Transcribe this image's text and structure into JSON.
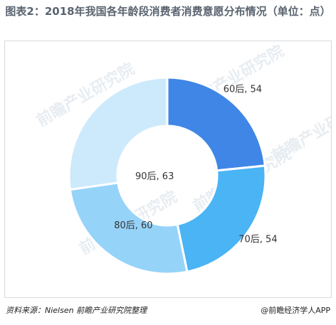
{
  "title": "图表2：2018年我国各年龄段消费者消费意愿分布情况（单位：点）",
  "footer": {
    "source": "资料来源：Nielsen  前瞻产业研究院整理",
    "brand": "@前瞻经济学人APP"
  },
  "watermark": {
    "text": "前瞻产业研究院"
  },
  "chart_data": {
    "type": "pie",
    "donut": true,
    "title": "图表2：2018年我国各年龄段消费者消费意愿分布情况（单位：点）",
    "categories": [
      "60后",
      "70后",
      "80后",
      "90后"
    ],
    "values": [
      54,
      54,
      60,
      63
    ],
    "data_labels": [
      "60后, 54",
      "70后, 54",
      "80后, 60",
      "90后, 63"
    ],
    "colors": [
      "#3f86e6",
      "#4ab4f5",
      "#96d3f9",
      "#cdeafc"
    ],
    "start_angle_deg": 0,
    "direction": "clockwise",
    "legend": "none"
  }
}
